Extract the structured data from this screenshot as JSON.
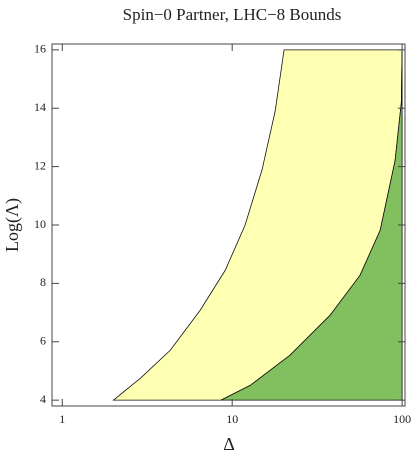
{
  "chart_data": {
    "type": "region",
    "title": "Spin−0 Partner, LHC−8 Bounds",
    "x_label": "Δ",
    "y_label": "Log(Λ)",
    "xscale": "log",
    "xlim": [
      0.87,
      104
    ],
    "ylim": [
      3.8,
      16.2
    ],
    "xticks": [
      1,
      10,
      100
    ],
    "yticks": [
      4,
      6,
      8,
      10,
      12,
      14,
      16
    ],
    "series": [
      {
        "color": "#ffffb4",
        "x": [
          2.0,
          2.88,
          4.32,
          6.48,
          9.1,
          11.9,
          15.0,
          17.9,
          20.2,
          100,
          99,
          90.9,
          74.3,
          56.6,
          37.7,
          21.9,
          12.8,
          8.6
        ],
        "y": [
          4,
          4.75,
          5.71,
          7.08,
          8.45,
          9.99,
          11.9,
          13.9,
          16,
          16,
          14.2,
          12.2,
          9.82,
          8.28,
          6.91,
          5.54,
          4.51,
          4
        ]
      },
      {
        "color": "#82bf5e",
        "x": [
          8.6,
          12.8,
          21.9,
          37.7,
          56.6,
          74.3,
          90.9,
          99,
          100,
          100
        ],
        "y": [
          4,
          4.51,
          5.54,
          6.91,
          8.28,
          9.82,
          12.2,
          14.2,
          16,
          4
        ]
      }
    ]
  }
}
